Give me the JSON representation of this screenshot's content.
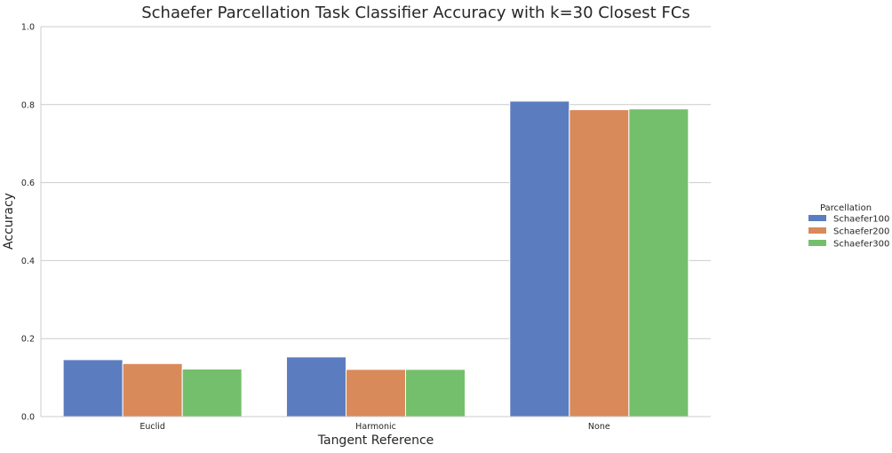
{
  "chart_data": {
    "type": "bar",
    "title": "Schaefer Parcellation Task Classifier Accuracy with k=30 Closest FCs",
    "xlabel": "Tangent Reference",
    "ylabel": "Accuracy",
    "categories": [
      "Euclid",
      "Harmonic",
      "None"
    ],
    "ylim": [
      0,
      1.0
    ],
    "yticks": [
      "0.0",
      "0.2",
      "0.4",
      "0.6",
      "0.8",
      "1.0"
    ],
    "grid": true,
    "legend": {
      "title": "Parcellation",
      "placement": "right"
    },
    "series": [
      {
        "name": "Schaefer100",
        "color": "#5b7dbf",
        "values": [
          0.146,
          0.153,
          0.809
        ]
      },
      {
        "name": "Schaefer200",
        "color": "#d98a5b",
        "values": [
          0.136,
          0.121,
          0.787
        ]
      },
      {
        "name": "Schaefer300",
        "color": "#74bf6b",
        "values": [
          0.122,
          0.121,
          0.789
        ]
      }
    ]
  }
}
